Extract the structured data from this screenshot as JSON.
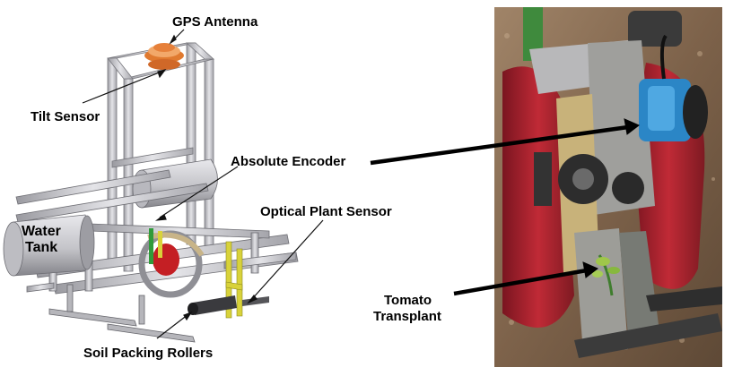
{
  "labels": {
    "gps_antenna": "GPS Antenna",
    "tilt_sensor": "Tilt Sensor",
    "absolute_encoder": "Absolute Encoder",
    "optical_plant_sensor": "Optical Plant Sensor",
    "water_tank_line1": "Water",
    "water_tank_line2": "Tank",
    "soil_packing_rollers": "Soil Packing Rollers",
    "tomato_line1": "Tomato",
    "tomato_line2": "Transplant"
  },
  "colors": {
    "frame": "#c9c9cc",
    "frame_dark": "#8e8e93",
    "antenna": "#e6803a",
    "sensor_yellow": "#d8d23a",
    "wheel_red": "#a81e2a",
    "soil": "#8a6a4e",
    "encoder_blue": "#2b86c6"
  }
}
